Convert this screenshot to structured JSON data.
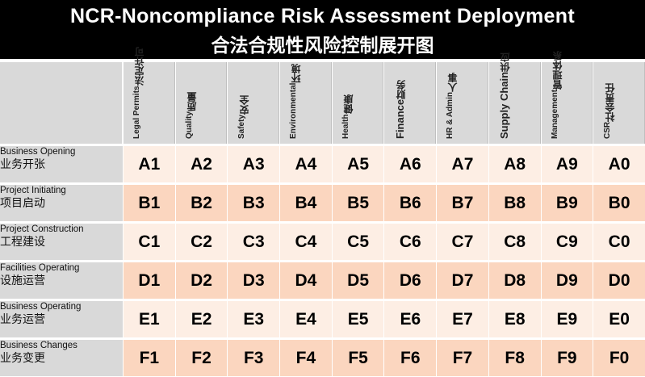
{
  "title": {
    "en": "NCR-Noncompliance Risk Assessment Deployment",
    "zh": "合法合规性风险控制展开图"
  },
  "columns": [
    {
      "en": "Legal Permits",
      "zh": "法定许可"
    },
    {
      "en": "Quality",
      "zh": "质量"
    },
    {
      "en": "Safety",
      "zh": "安全"
    },
    {
      "en": "Environmental",
      "zh": "环境"
    },
    {
      "en": "Health",
      "zh": "健康"
    },
    {
      "en": "Finance",
      "zh": "财务"
    },
    {
      "en": "HR & Admin",
      "zh": "人事"
    },
    {
      "en": "Supply Chain",
      "zh": "供应"
    },
    {
      "en": "Management",
      "zh": "管理体系"
    },
    {
      "en": "CSR",
      "zh": "社会责任"
    }
  ],
  "rows": [
    {
      "en": "Business Opening",
      "zh": "业务开张",
      "cells": [
        "A1",
        "A2",
        "A3",
        "A4",
        "A5",
        "A6",
        "A7",
        "A8",
        "A9",
        "A0"
      ]
    },
    {
      "en": "Project Initiating",
      "zh": "项目启动",
      "cells": [
        "B1",
        "B2",
        "B3",
        "B4",
        "B5",
        "B6",
        "B7",
        "B8",
        "B9",
        "B0"
      ]
    },
    {
      "en": "Project Construction",
      "zh": "工程建设",
      "cells": [
        "C1",
        "C2",
        "C3",
        "C4",
        "C5",
        "C6",
        "C7",
        "C8",
        "C9",
        "C0"
      ]
    },
    {
      "en": "Facilities Operating",
      "zh": "设施运营",
      "cells": [
        "D1",
        "D2",
        "D3",
        "D4",
        "D5",
        "D6",
        "D7",
        "D8",
        "D9",
        "D0"
      ]
    },
    {
      "en": "Business Operating",
      "zh": "业务运营",
      "cells": [
        "E1",
        "E2",
        "E3",
        "E4",
        "E5",
        "E6",
        "E7",
        "E8",
        "E9",
        "E0"
      ]
    },
    {
      "en": "Business Changes",
      "zh": "业务变更",
      "cells": [
        "F1",
        "F2",
        "F3",
        "F4",
        "F5",
        "F6",
        "F7",
        "F8",
        "F9",
        "F0"
      ]
    }
  ],
  "colors": {
    "header_bg": "#000000",
    "label_bg": "#d9d9d9",
    "row_light": "#fdeee4",
    "row_dark": "#fbd6bf"
  }
}
